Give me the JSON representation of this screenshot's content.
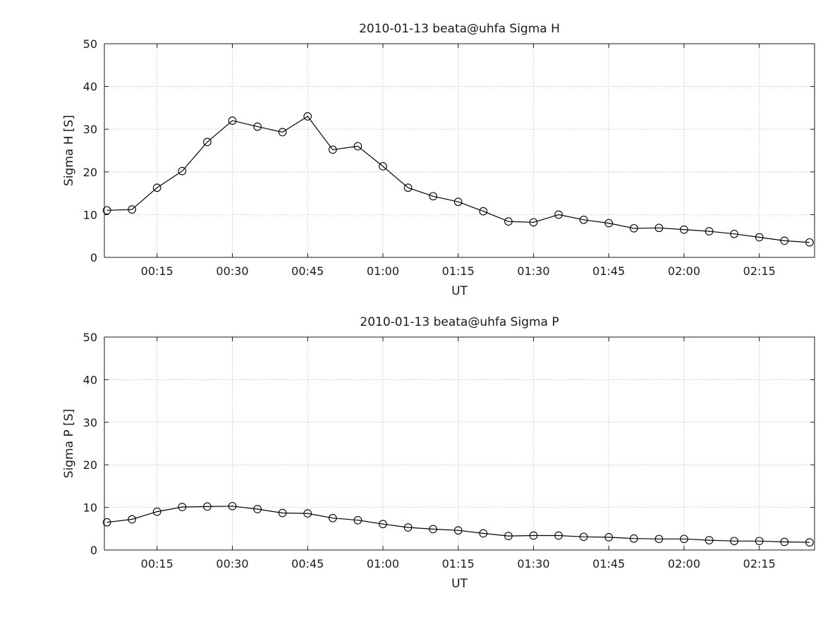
{
  "figure": {
    "background": "#ffffff",
    "text_color": "#1a1a1a"
  },
  "chart_data": [
    {
      "type": "line",
      "title": "2010-01-13  beata@uhfa Sigma H",
      "xlabel": "UT",
      "ylabel": "Sigma H [S]",
      "ylim": [
        0,
        50
      ],
      "yticks": [
        0,
        10,
        20,
        30,
        40,
        50
      ],
      "xlim_minutes": [
        4.5,
        146
      ],
      "xtick_labels": [
        "00:15",
        "00:30",
        "00:45",
        "01:00",
        "01:15",
        "01:30",
        "01:45",
        "02:00",
        "02:15"
      ],
      "x": [
        "00:05",
        "00:10",
        "00:15",
        "00:20",
        "00:25",
        "00:30",
        "00:35",
        "00:40",
        "00:45",
        "00:50",
        "00:55",
        "01:00",
        "01:05",
        "01:10",
        "01:15",
        "01:20",
        "01:25",
        "01:30",
        "01:35",
        "01:40",
        "01:45",
        "01:50",
        "01:55",
        "02:00",
        "02:05",
        "02:10",
        "02:15",
        "02:20",
        "02:25"
      ],
      "values": [
        11,
        11.2,
        16.3,
        20.2,
        27,
        32,
        30.6,
        29.3,
        33,
        25.2,
        26,
        21.3,
        16.3,
        14.3,
        13,
        10.8,
        8.4,
        8.2,
        10,
        8.8,
        8,
        6.8,
        6.9,
        6.5,
        6.1,
        5.5,
        4.7,
        3.9,
        3.5
      ],
      "marker": "circle",
      "line_color": "#000000",
      "grid": true,
      "legend": "none"
    },
    {
      "type": "line",
      "title": "2010-01-13  beata@uhfa Sigma P",
      "xlabel": "UT",
      "ylabel": "Sigma P [S]",
      "ylim": [
        0,
        50
      ],
      "yticks": [
        0,
        10,
        20,
        30,
        40,
        50
      ],
      "xlim_minutes": [
        4.5,
        146
      ],
      "xtick_labels": [
        "00:15",
        "00:30",
        "00:45",
        "01:00",
        "01:15",
        "01:30",
        "01:45",
        "02:00",
        "02:15"
      ],
      "x": [
        "00:05",
        "00:10",
        "00:15",
        "00:20",
        "00:25",
        "00:30",
        "00:35",
        "00:40",
        "00:45",
        "00:50",
        "00:55",
        "01:00",
        "01:05",
        "01:10",
        "01:15",
        "01:20",
        "01:25",
        "01:30",
        "01:35",
        "01:40",
        "01:45",
        "01:50",
        "01:55",
        "02:00",
        "02:05",
        "02:10",
        "02:15",
        "02:20",
        "02:25"
      ],
      "values": [
        6.5,
        7.2,
        9,
        10.1,
        10.2,
        10.3,
        9.6,
        8.7,
        8.6,
        7.5,
        7,
        6.1,
        5.3,
        4.9,
        4.6,
        3.9,
        3.3,
        3.4,
        3.4,
        3.1,
        3,
        2.7,
        2.6,
        2.6,
        2.3,
        2.1,
        2.1,
        1.9,
        1.8
      ],
      "marker": "circle",
      "line_color": "#000000",
      "grid": true,
      "legend": "none"
    }
  ]
}
